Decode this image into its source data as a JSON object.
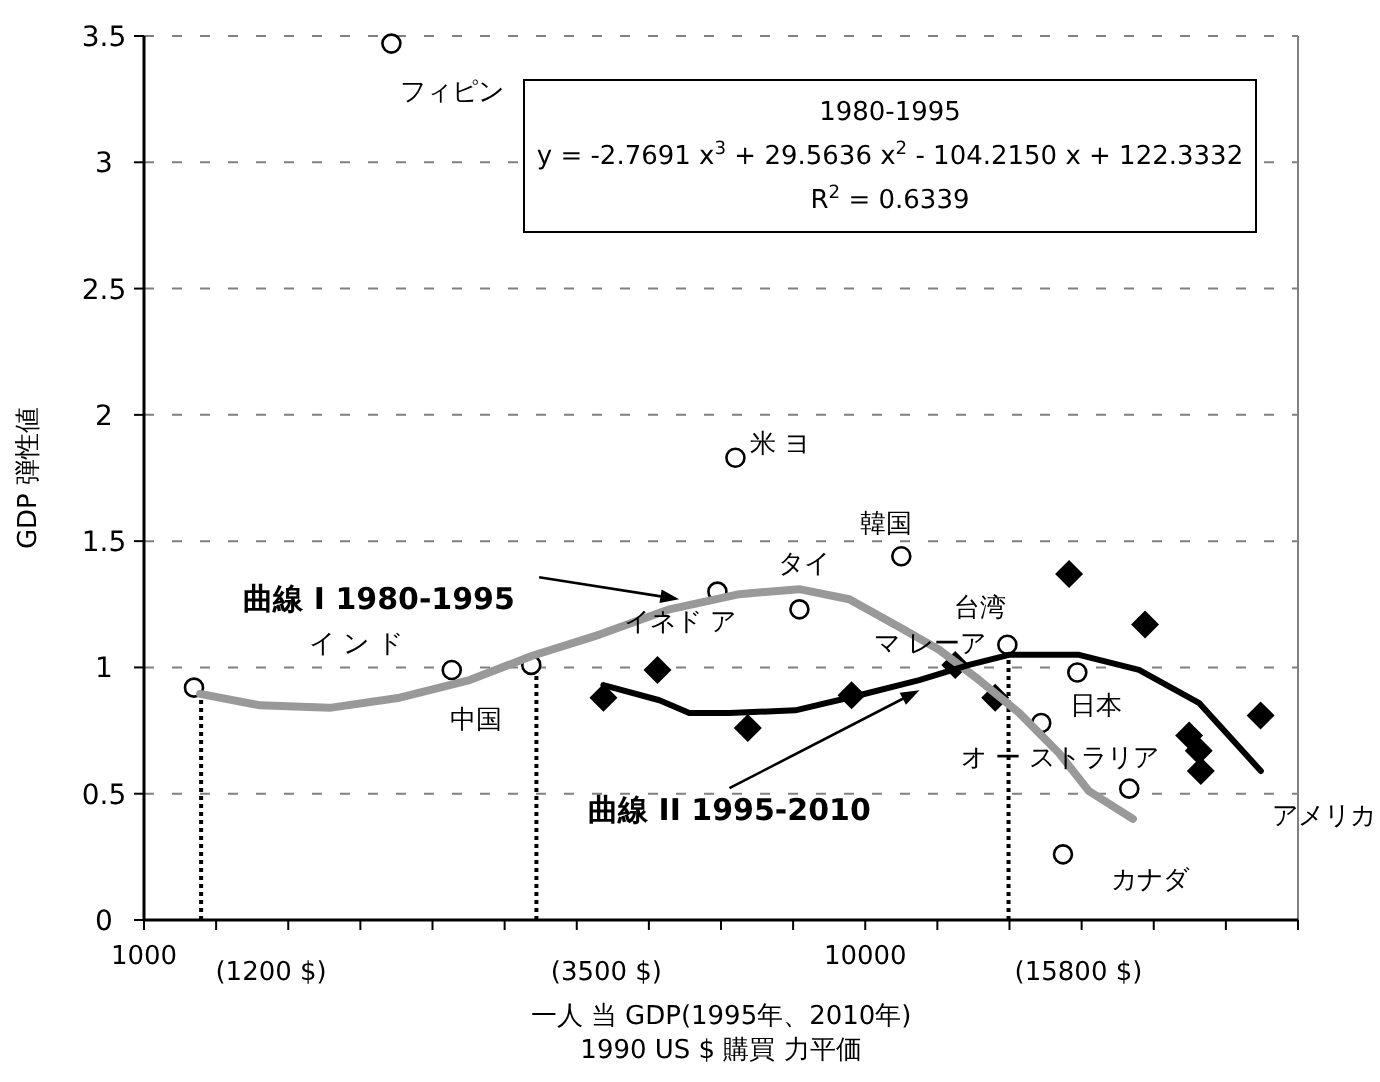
{
  "chart_data": {
    "type": "scatter",
    "log": "x",
    "grid": "y",
    "xlabel": "一人 当 GDP(1995年、2010年)\n1990 US $ 購買 力平価",
    "ylabel": "GDP 弾性値",
    "xlim": [
      1000,
      39811
    ],
    "xticks": [
      {
        "value": 1000,
        "label": "1000"
      },
      {
        "value": 1258.9,
        "label": null
      },
      {
        "value": 1584.9,
        "label": null
      },
      {
        "value": 1995.3,
        "label": null
      },
      {
        "value": 2511.9,
        "label": null
      },
      {
        "value": 3162.3,
        "label": null
      },
      {
        "value": 3981.1,
        "label": null
      },
      {
        "value": 5011.9,
        "label": null
      },
      {
        "value": 6309.6,
        "label": null
      },
      {
        "value": 7943.3,
        "label": null
      },
      {
        "value": 10000,
        "label": "10000"
      },
      {
        "value": 12589,
        "label": null
      },
      {
        "value": 15849,
        "label": null
      },
      {
        "value": 19953,
        "label": null
      },
      {
        "value": 25119,
        "label": null
      },
      {
        "value": 31623,
        "label": null
      },
      {
        "value": 39811,
        "label": null
      }
    ],
    "ylim": [
      0,
      3.5
    ],
    "yticks": [
      0,
      0.5,
      1,
      1.5,
      2,
      2.5,
      3,
      3.5
    ],
    "series": [
      {
        "type": "scatter",
        "marker": "circle",
        "color": "#000000",
        "x": [
          1173,
          2671,
          3443,
          2203,
          6607,
          6238,
          8105,
          11220,
          15740,
          19680,
          17540,
          23230,
          18800
        ],
        "values": [
          0.92,
          0.99,
          1.01,
          3.47,
          1.83,
          1.3,
          1.23,
          1.44,
          1.09,
          0.98,
          0.78,
          0.52,
          0.26
        ]
      },
      {
        "type": "scatter",
        "marker": "diamond",
        "color": "#000000",
        "x": [
          4335,
          5152,
          6873,
          9573,
          13330,
          15140,
          19170,
          24430,
          28120,
          29190,
          29000,
          35330
        ],
        "values": [
          0.88,
          0.99,
          0.76,
          0.89,
          1.01,
          0.88,
          1.37,
          1.17,
          0.73,
          0.59,
          0.67,
          0.81
        ]
      },
      {
        "type": "line",
        "marker": "none",
        "color": "#999999",
        "x": [
          1196,
          1448,
          1809,
          2262,
          2828,
          3446,
          4282,
          5352,
          6691,
          8101,
          9502,
          11145,
          12660,
          14385,
          16345,
          18569,
          20430,
          23500
        ],
        "values": [
          0.895,
          0.85,
          0.84,
          0.88,
          0.95,
          1.045,
          1.13,
          1.23,
          1.29,
          1.31,
          1.27,
          1.16,
          1.07,
          0.95,
          0.82,
          0.66,
          0.51,
          0.4
        ]
      },
      {
        "type": "line",
        "marker": "none",
        "color": "#000000",
        "x": [
          4335,
          5184,
          5702,
          6479,
          7998,
          9810,
          11880,
          13930,
          15820,
          19790,
          23960,
          29010,
          35360
        ],
        "values": [
          0.93,
          0.87,
          0.82,
          0.82,
          0.83,
          0.89,
          0.95,
          1.01,
          1.05,
          1.05,
          0.99,
          0.86,
          0.59
        ]
      }
    ],
    "ref_lines": [
      {
        "axis": "x",
        "value": 1200,
        "label": "(1200 $)",
        "color": "#000000",
        "line_style": "dotted"
      },
      {
        "axis": "x",
        "value": 3500,
        "label": "(3500 $)",
        "color": "#000000",
        "line_style": "dotted"
      },
      {
        "axis": "x",
        "value": 15800,
        "label": "(15800 $)",
        "color": "#000000",
        "line_style": "dotted"
      }
    ],
    "annotations": [
      "1980-1995",
      "y = -2.7691 x$^{3}$ + 29.5636 x$^{2}$ - 104.2150 x + 122.3332",
      "R$^{2}$ = 0.6339",
      {
        "text": "曲線 I 1980-1995",
        "x": 5520,
        "y": 1.27
      },
      {
        "text": "曲線 II 1995-2010",
        "x": 11890,
        "y": 0.91
      },
      "フィピン",
      "米 ヨ",
      "韓国",
      "タイ",
      "イ ン ド",
      "中国",
      "イネド ア",
      "台湾",
      "マ レーア",
      "日本",
      "オ ー ストラリア",
      "アメリカ",
      "カナダ"
    ]
  }
}
